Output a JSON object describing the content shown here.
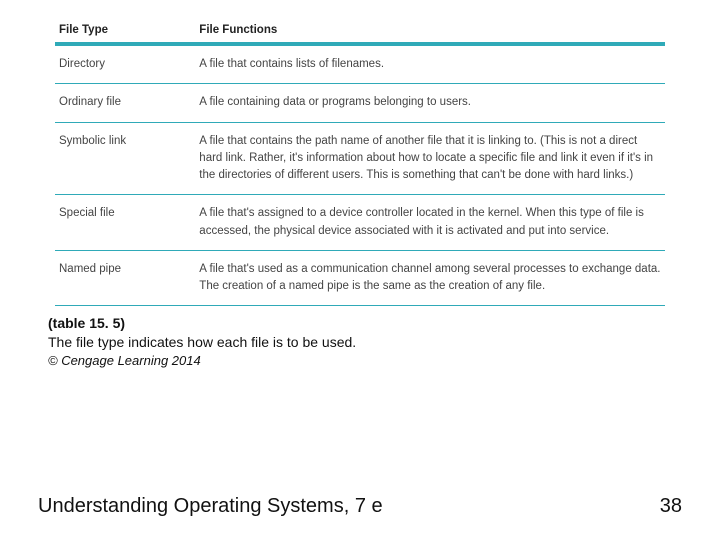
{
  "table": {
    "columns": [
      "File Type",
      "File Functions"
    ],
    "column_widths": [
      "23%",
      "77%"
    ],
    "header_border_color": "#2faab8",
    "row_border_color": "#2faab8",
    "header_fontsize": 11.5,
    "body_fontsize": 11.5,
    "text_color": "#444444",
    "background_color": "#ffffff",
    "rows": [
      {
        "type": "Directory",
        "func": "A file that contains lists of filenames."
      },
      {
        "type": "Ordinary file",
        "func": "A file containing data or programs belonging to users."
      },
      {
        "type": "Symbolic link",
        "func": "A file that contains the path name of another file that it is linking to. (This is not a direct hard link. Rather, it's information about how to locate a specific file and link it even if it's in the directories of different users. This is something that can't be done with hard links.)"
      },
      {
        "type": "Special file",
        "func": "A file that's assigned to a device controller located in the kernel. When this type of file is accessed, the physical device associated with it is activated and put into service."
      },
      {
        "type": "Named pipe",
        "func": "A file that's used as a communication channel among several processes to exchange data. The creation of a named pipe is the same as the creation of any file."
      }
    ]
  },
  "caption": {
    "ref": "(table 15. 5)",
    "text": "The file type indicates how each file is to be used.",
    "copyright": "© Cengage Learning 2014"
  },
  "footer": {
    "title": "Understanding Operating Systems, 7 e",
    "page": "38"
  }
}
